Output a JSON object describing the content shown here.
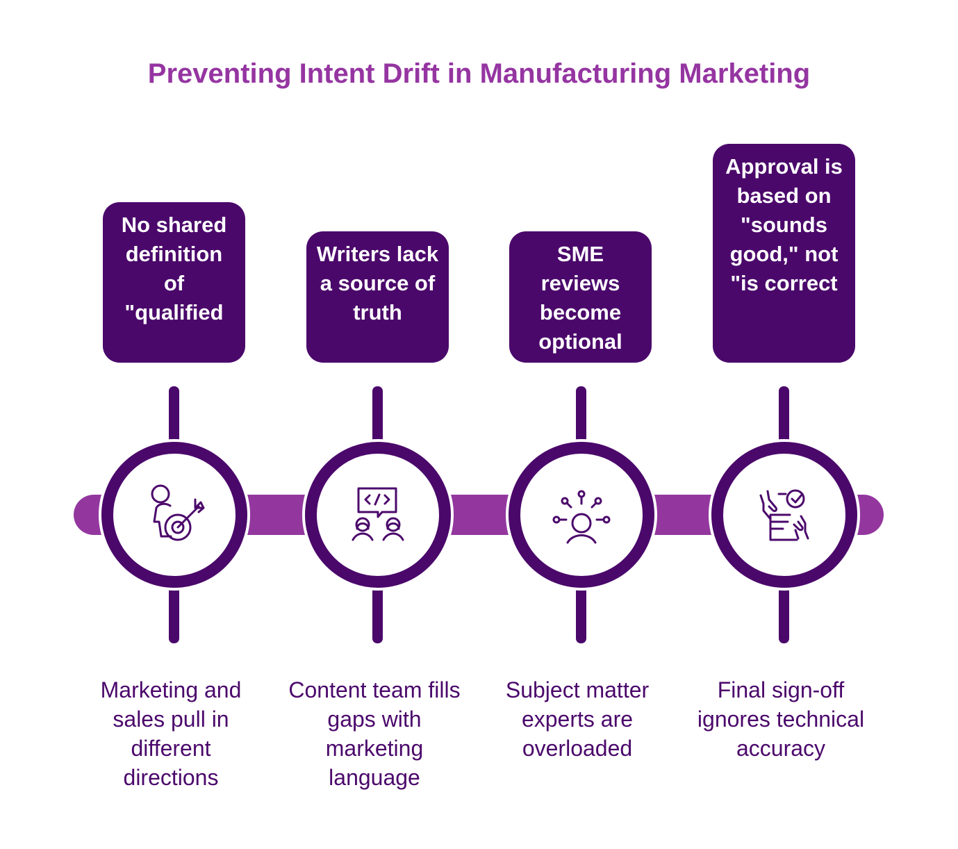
{
  "title": "Preventing Intent Drift in Manufacturing Marketing",
  "colors": {
    "dark_purple": "#4b086b",
    "bar_purple": "#93379f",
    "title_purple": "#9535a1"
  },
  "steps": [
    {
      "card": "No shared definition of \"qualified",
      "description": "Marketing and sales pull in different directions",
      "icon": "person-target-icon"
    },
    {
      "card": "Writers lack a source of truth",
      "description": "Content team fills gaps with marketing language",
      "icon": "team-code-chat-icon"
    },
    {
      "card": "SME reviews become optional",
      "description": "Subject matter experts are overloaded",
      "icon": "expert-network-icon"
    },
    {
      "card": "Approval is based on \"sounds good,\" not \"is correct",
      "description": "Final sign-off ignores technical accuracy",
      "icon": "approval-document-icon"
    }
  ]
}
